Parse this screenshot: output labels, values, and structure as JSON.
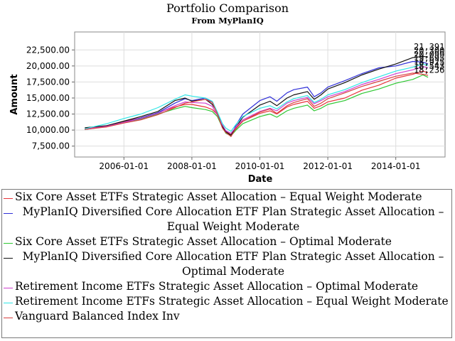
{
  "chart_data": {
    "type": "line",
    "title": "Portfolio Comparison",
    "subtitle": "From MyPlanIQ",
    "xlabel": "Date",
    "ylabel": "Amount",
    "x_ticks": [
      "2006-01-01",
      "2008-01-01",
      "2010-01-01",
      "2012-01-01",
      "2014-01-01"
    ],
    "y_ticks": [
      "7,500.00",
      "10,000.00",
      "12,500.00",
      "15,000.00",
      "17,500.00",
      "20,000.00",
      "22,500.00"
    ],
    "xlim": [
      2004.55,
      2015.45
    ],
    "ylim": [
      5800,
      25300
    ],
    "grid": true,
    "end_labels": [
      "21,391",
      "20,300",
      "20,099",
      "19,695",
      "18,925",
      "18,543",
      "18,236"
    ],
    "x": [
      2004.85,
      2005.5,
      2006.0,
      2006.5,
      2007.0,
      2007.5,
      2007.8,
      2008.0,
      2008.4,
      2008.6,
      2008.75,
      2008.9,
      2009.0,
      2009.15,
      2009.3,
      2009.5,
      2010.0,
      2010.3,
      2010.5,
      2010.8,
      2011.0,
      2011.4,
      2011.6,
      2011.8,
      2012.0,
      2012.5,
      2013.0,
      2013.5,
      2014.0,
      2014.5,
      2014.8,
      2014.95
    ],
    "series": [
      {
        "name": "Six Core Asset ETFs Strategic Asset Allocation - Equal Weight Moderate",
        "color": "#e8343a",
        "values": [
          10150,
          10700,
          11350,
          11900,
          12700,
          13600,
          14000,
          14000,
          13600,
          13200,
          12400,
          10700,
          9800,
          9300,
          10200,
          11400,
          12600,
          13000,
          12500,
          13600,
          14000,
          14500,
          13400,
          13800,
          14400,
          15000,
          16200,
          17000,
          18100,
          18700,
          19200,
          18925
        ]
      },
      {
        "name": "MyPlanIQ Diversified Core Allocation ETF Plan Strategic Asset Allocation - Equal Weight Moderate",
        "color": "#3030d8",
        "values": [
          10100,
          10550,
          11200,
          11900,
          12700,
          14200,
          14900,
          14600,
          15000,
          14300,
          12600,
          10400,
          9800,
          9000,
          10800,
          12500,
          14600,
          15200,
          14500,
          15800,
          16300,
          16700,
          15200,
          15800,
          16700,
          17700,
          18800,
          19700,
          20000,
          20700,
          20600,
          20300
        ]
      },
      {
        "name": "Six Core Asset ETFs Strategic Asset Allocation - Optimal Moderate",
        "color": "#2ec832",
        "values": [
          10100,
          10600,
          11150,
          11700,
          12500,
          13300,
          13700,
          13500,
          13200,
          12900,
          12100,
          10400,
          9500,
          9100,
          10000,
          11000,
          12100,
          12500,
          12000,
          13000,
          13400,
          13900,
          13000,
          13400,
          14000,
          14600,
          15700,
          16400,
          17300,
          17900,
          18600,
          18236
        ]
      },
      {
        "name": "MyPlanIQ Diversified Core Allocation ETF Plan Strategic Asset Allocation - Optimal Moderate",
        "color": "#111111",
        "values": [
          10350,
          10700,
          11400,
          12100,
          12900,
          14600,
          15000,
          14500,
          14800,
          14000,
          12800,
          10600,
          9700,
          9200,
          10500,
          12000,
          13900,
          14500,
          13800,
          15000,
          15500,
          16000,
          14800,
          15500,
          16400,
          17400,
          18600,
          19500,
          20300,
          21300,
          21500,
          21391
        ]
      },
      {
        "name": "Retirement Income ETFs Strategic Asset Allocation - Optimal Moderate",
        "color": "#cf3fcf",
        "values": [
          10150,
          10600,
          11200,
          11800,
          12600,
          13800,
          14400,
          14300,
          14200,
          13700,
          12300,
          10800,
          9900,
          9500,
          10500,
          11600,
          12900,
          13400,
          13000,
          14200,
          14600,
          15100,
          14100,
          14600,
          15200,
          16000,
          17100,
          17900,
          18800,
          19400,
          19900,
          19695
        ]
      },
      {
        "name": "Retirement Income ETFs Strategic Asset Allocation - Equal Weight Moderate",
        "color": "#2ee6e6",
        "values": [
          10200,
          11000,
          11800,
          12500,
          13500,
          14800,
          15500,
          15300,
          15000,
          14500,
          12800,
          11000,
          10300,
          9800,
          10900,
          12100,
          13400,
          13800,
          13300,
          14400,
          14900,
          15400,
          14300,
          14800,
          15500,
          16300,
          17400,
          18300,
          19200,
          19800,
          20300,
          20099
        ]
      },
      {
        "name": "Vanguard Balanced Index Inv",
        "color": "#d84040",
        "values": [
          10100,
          10500,
          11100,
          11600,
          12400,
          13500,
          14200,
          14400,
          14800,
          14300,
          12500,
          10300,
          9600,
          9000,
          10300,
          11400,
          12800,
          13300,
          12600,
          13800,
          14300,
          14900,
          13700,
          14200,
          14900,
          15800,
          16800,
          17600,
          18400,
          18900,
          18700,
          18543
        ]
      }
    ]
  },
  "legend": {
    "items": [
      {
        "label": "Six Core Asset ETFs Strategic Asset Allocation – Equal Weight Moderate",
        "color": "#e8343a"
      },
      {
        "label": "MyPlanIQ Diversified Core Allocation ETF Plan Strategic Asset Allocation – Equal Weight Moderate",
        "color": "#3030d8"
      },
      {
        "label": "Six Core Asset ETFs Strategic Asset Allocation – Optimal Moderate",
        "color": "#2ec832"
      },
      {
        "label": "MyPlanIQ Diversified Core Allocation ETF Plan Strategic Asset Allocation – Optimal Moderate",
        "color": "#111111"
      },
      {
        "label": "Retirement Income ETFs Strategic Asset Allocation – Optimal Moderate",
        "color": "#cf3fcf"
      },
      {
        "label": "Retirement Income ETFs Strategic Asset Allocation – Equal Weight Moderate",
        "color": "#2ee6e6"
      },
      {
        "label": "Vanguard Balanced Index Inv",
        "color": "#d84040"
      }
    ]
  }
}
